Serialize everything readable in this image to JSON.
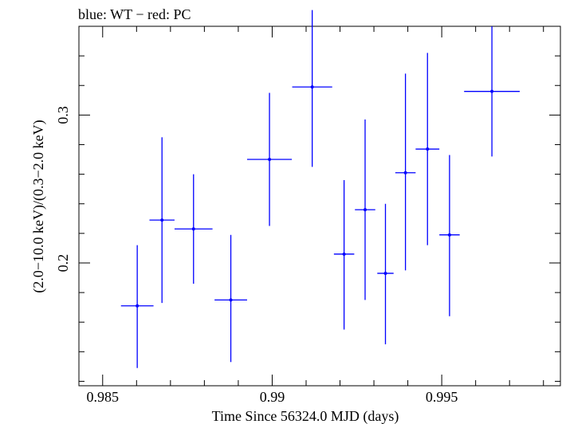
{
  "chart_data": {
    "type": "scatter",
    "title": "blue: WT − red: PC",
    "xlabel": "Time Since 56324.0 MJD (days)",
    "ylabel": "(2.0−10.0 keV)/(0.3−2.0 keV)",
    "xlim": [
      0.9843,
      0.9985
    ],
    "ylim": [
      0.117,
      0.36
    ],
    "grid": false,
    "x_ticks": [
      {
        "value": 0.985,
        "label": "0.985"
      },
      {
        "value": 0.99,
        "label": "0.99"
      },
      {
        "value": 0.995,
        "label": "0.995"
      }
    ],
    "y_ticks": [
      {
        "value": 0.2,
        "label": "0.2"
      },
      {
        "value": 0.3,
        "label": "0.3"
      }
    ],
    "colors": {
      "WT": "#0000ff",
      "PC": "#ff0000",
      "axes": "#000000"
    },
    "series": [
      {
        "name": "WT",
        "color": "#0000ff",
        "points": [
          {
            "x": 0.98602,
            "xerr": 0.00048,
            "y": 0.171,
            "ylo": 0.129,
            "yhi": 0.212
          },
          {
            "x": 0.98675,
            "xerr": 0.00037,
            "y": 0.229,
            "ylo": 0.173,
            "yhi": 0.285
          },
          {
            "x": 0.98768,
            "xerr": 0.00056,
            "y": 0.223,
            "ylo": 0.186,
            "yhi": 0.26
          },
          {
            "x": 0.98878,
            "xerr": 0.00048,
            "y": 0.175,
            "ylo": 0.133,
            "yhi": 0.219
          },
          {
            "x": 0.98992,
            "xerr": 0.00066,
            "y": 0.27,
            "ylo": 0.225,
            "yhi": 0.315
          },
          {
            "x": 0.99118,
            "xerr": 0.00059,
            "y": 0.319,
            "ylo": 0.265,
            "yhi": 0.371
          },
          {
            "x": 0.99212,
            "xerr": 0.0003,
            "y": 0.206,
            "ylo": 0.155,
            "yhi": 0.256
          },
          {
            "x": 0.99274,
            "xerr": 0.0003,
            "y": 0.236,
            "ylo": 0.175,
            "yhi": 0.297
          },
          {
            "x": 0.99334,
            "xerr": 0.00024,
            "y": 0.193,
            "ylo": 0.145,
            "yhi": 0.24
          },
          {
            "x": 0.99393,
            "xerr": 0.0003,
            "y": 0.261,
            "ylo": 0.195,
            "yhi": 0.328
          },
          {
            "x": 0.99458,
            "xerr": 0.00035,
            "y": 0.277,
            "ylo": 0.212,
            "yhi": 0.342
          },
          {
            "x": 0.99523,
            "xerr": 0.0003,
            "y": 0.219,
            "ylo": 0.164,
            "yhi": 0.273
          },
          {
            "x": 0.99648,
            "xerr": 0.00082,
            "y": 0.316,
            "ylo": 0.272,
            "yhi": 0.36
          }
        ]
      }
    ]
  }
}
